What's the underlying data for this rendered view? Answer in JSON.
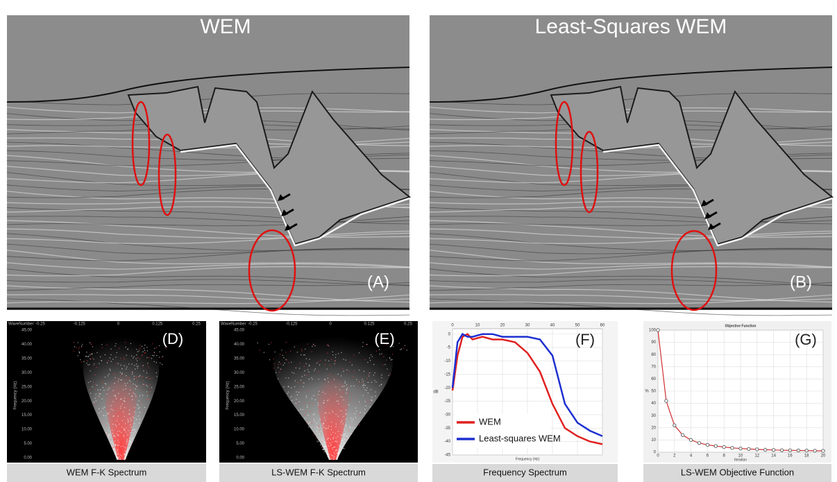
{
  "top_panels": [
    {
      "title": "WEM",
      "label": "(A)"
    },
    {
      "title": "Least-Squares WEM",
      "label": "(B)"
    }
  ],
  "fk_panels": [
    {
      "label": "(D)",
      "caption": "WEM F-K Spectrum",
      "x_axis_title": "WaveNumber",
      "y_axis_title": "Frequency (Hz)",
      "xtick_labels": [
        "-0.25",
        "-0.125",
        "0",
        "0.125",
        "0.25"
      ],
      "ytick_labels": [
        "45.00",
        "40.00",
        "35.00",
        "30.00",
        "25.00",
        "20.00",
        "15.00",
        "10.00",
        "5.00",
        "0.00"
      ]
    },
    {
      "label": "(E)",
      "caption": "LS-WEM F-K Spectrum",
      "x_axis_title": "WaveNumber",
      "y_axis_title": "Frequency (Hz)",
      "xtick_labels": [
        "-0.25",
        "-0.125",
        "0",
        "0.125",
        "0.25"
      ],
      "ytick_labels": [
        "45.00",
        "40.00",
        "35.00",
        "30.00",
        "25.00",
        "20.00",
        "15.00",
        "10.00",
        "5.00",
        "0.00"
      ]
    }
  ],
  "chart_data": [
    {
      "type": "line",
      "label": "(F)",
      "caption": "Frequency Spectrum",
      "x_label": "Frequency (Hz)",
      "y_label": "dB",
      "x": [
        0,
        2,
        4,
        6,
        8,
        12,
        16,
        20,
        25,
        30,
        35,
        40,
        45,
        50,
        55,
        60
      ],
      "xlim": [
        0,
        60
      ],
      "xticks": [
        0,
        10,
        20,
        30,
        40,
        50,
        60
      ],
      "ylim": [
        -45,
        2
      ],
      "yticks": [
        0,
        -5,
        -10,
        -15,
        -20,
        -25,
        -30,
        -35,
        -40,
        -45
      ],
      "grid": true,
      "legend": "lower left",
      "series": [
        {
          "name": "WEM",
          "color": "#e02020",
          "values": [
            -21,
            -8,
            -1,
            0,
            -2,
            -1,
            -2,
            -2,
            -3,
            -7,
            -14,
            -26,
            -35,
            -38,
            -40,
            -41
          ]
        },
        {
          "name": "Least-squares WEM",
          "color": "#1c2fd0",
          "values": [
            -20,
            -3,
            0,
            -1,
            -1,
            0,
            0,
            -1,
            -1,
            -1,
            -2,
            -8,
            -26,
            -33,
            -36,
            -38
          ]
        }
      ]
    },
    {
      "type": "line",
      "label": "(G)",
      "caption": "LS-WEM Objective Function",
      "title": "Objective Function",
      "x_label": "Iteration",
      "y_label": "%",
      "x": [
        0,
        1,
        2,
        3,
        4,
        5,
        6,
        7,
        8,
        9,
        10,
        11,
        12,
        13,
        14,
        15,
        16,
        17,
        18,
        19,
        20
      ],
      "values": [
        100,
        42,
        22,
        14,
        10,
        7.5,
        6,
        5,
        4.2,
        3.5,
        3,
        2.6,
        2.3,
        2,
        1.8,
        1.6,
        1.5,
        1.4,
        1.3,
        1.2,
        1.1
      ],
      "color": "#d03030",
      "marker": "circle",
      "xlim": [
        0,
        20
      ],
      "xticks": [
        0,
        2,
        4,
        6,
        8,
        10,
        12,
        14,
        16,
        18,
        20
      ],
      "ylim": [
        0,
        100
      ],
      "yticks": [
        0,
        10,
        20,
        30,
        40,
        50,
        60,
        70,
        80,
        90,
        100
      ],
      "grid": true
    }
  ]
}
